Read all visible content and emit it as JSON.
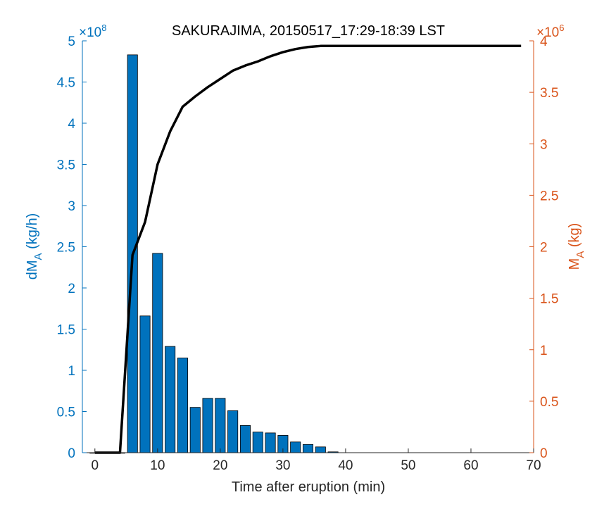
{
  "chart_data": {
    "type": "bar",
    "title": "SAKURAJIMA, 20150517_17:29-18:39 LST",
    "xlabel": "Time after eruption (min)",
    "x_ticks": [
      "0",
      "10",
      "20",
      "30",
      "40",
      "50",
      "60",
      "70"
    ],
    "xlim": [
      -2,
      70
    ],
    "left_axis": {
      "label_main": "dM",
      "label_sub": "A",
      "label_unit": " (kg/h)",
      "exponent_base": "×10",
      "exponent_power": "8",
      "color": "#0072BD",
      "ylim": [
        0,
        5
      ],
      "ticks": [
        "0",
        "0.5",
        "1",
        "1.5",
        "2",
        "2.5",
        "3",
        "3.5",
        "4",
        "4.5",
        "5"
      ]
    },
    "right_axis": {
      "label_main": "M",
      "label_sub": "A",
      "label_unit": " (kg)",
      "exponent_base": "×10",
      "exponent_power": "6",
      "color": "#D95319",
      "ylim": [
        0,
        4
      ],
      "ticks": [
        "0",
        "0.5",
        "1",
        "1.5",
        "2",
        "2.5",
        "3",
        "3.5",
        "4"
      ]
    },
    "bars": {
      "x": [
        0,
        2,
        4,
        6,
        8,
        10,
        12,
        14,
        16,
        18,
        20,
        22,
        24,
        26,
        28,
        30,
        32,
        34,
        36,
        38
      ],
      "values": [
        0.0,
        0.0,
        0.0,
        4.83,
        1.66,
        2.42,
        1.29,
        1.15,
        0.55,
        0.66,
        0.66,
        0.51,
        0.33,
        0.25,
        0.24,
        0.21,
        0.13,
        0.1,
        0.07,
        0.01
      ],
      "width": 1.6,
      "color": "#0072BD"
    },
    "line": {
      "x": [
        0,
        4,
        6,
        8,
        10,
        12,
        14,
        16,
        18,
        20,
        22,
        24,
        26,
        28,
        30,
        32,
        34,
        36,
        38,
        68
      ],
      "values": [
        0.0,
        0.0,
        1.92,
        2.24,
        2.8,
        3.12,
        3.36,
        3.46,
        3.55,
        3.63,
        3.71,
        3.76,
        3.8,
        3.85,
        3.89,
        3.92,
        3.94,
        3.95,
        3.95,
        3.95
      ],
      "color": "#000000"
    }
  }
}
